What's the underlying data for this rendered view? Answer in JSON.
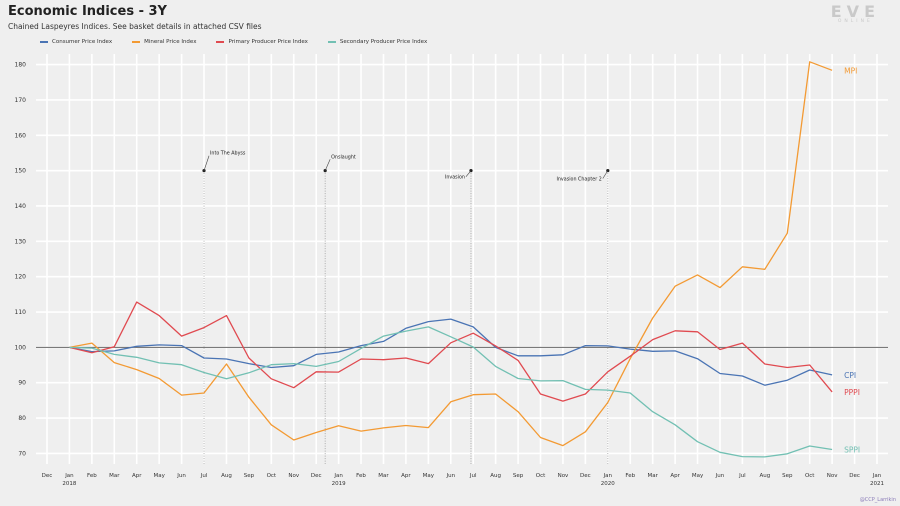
{
  "header": {
    "title": "Economic Indices - 3Y",
    "subtitle": "Chained Laspeyres Indices. See basket details in attached CSV files"
  },
  "logo": {
    "main": "EVE",
    "sub": "ONLINE"
  },
  "credit": "@CCP_Larrikin",
  "colors": {
    "background": "#efefef",
    "grid": "#ffffff",
    "axis": "#555555",
    "cpi": "#4a74b4",
    "mpi": "#f39a33",
    "pppi": "#e04a50",
    "sppi": "#72c0b3"
  },
  "chart_data": {
    "type": "line",
    "title": "Economic Indices - 3Y",
    "grid": true,
    "legend": "top-left",
    "ylim": [
      67,
      183
    ],
    "y_ticks": [
      70,
      80,
      90,
      100,
      110,
      120,
      130,
      140,
      150,
      160,
      170,
      180
    ],
    "reference_line": 100,
    "x_labels": [
      {
        "month": "Dec",
        "year": ""
      },
      {
        "month": "Jan",
        "year": "2018"
      },
      {
        "month": "Feb",
        "year": ""
      },
      {
        "month": "Mar",
        "year": ""
      },
      {
        "month": "Apr",
        "year": ""
      },
      {
        "month": "May",
        "year": ""
      },
      {
        "month": "Jun",
        "year": ""
      },
      {
        "month": "Jul",
        "year": ""
      },
      {
        "month": "Aug",
        "year": ""
      },
      {
        "month": "Sep",
        "year": ""
      },
      {
        "month": "Oct",
        "year": ""
      },
      {
        "month": "Nov",
        "year": ""
      },
      {
        "month": "Dec",
        "year": ""
      },
      {
        "month": "Jan",
        "year": "2019"
      },
      {
        "month": "Feb",
        "year": ""
      },
      {
        "month": "Mar",
        "year": ""
      },
      {
        "month": "Apr",
        "year": ""
      },
      {
        "month": "May",
        "year": ""
      },
      {
        "month": "Jun",
        "year": ""
      },
      {
        "month": "Jul",
        "year": ""
      },
      {
        "month": "Aug",
        "year": ""
      },
      {
        "month": "Sep",
        "year": ""
      },
      {
        "month": "Oct",
        "year": ""
      },
      {
        "month": "Nov",
        "year": ""
      },
      {
        "month": "Dec",
        "year": ""
      },
      {
        "month": "Jan",
        "year": "2020"
      },
      {
        "month": "Feb",
        "year": ""
      },
      {
        "month": "Mar",
        "year": ""
      },
      {
        "month": "Apr",
        "year": ""
      },
      {
        "month": "May",
        "year": ""
      },
      {
        "month": "Jun",
        "year": ""
      },
      {
        "month": "Jul",
        "year": ""
      },
      {
        "month": "Aug",
        "year": ""
      },
      {
        "month": "Sep",
        "year": ""
      },
      {
        "month": "Oct",
        "year": ""
      },
      {
        "month": "Nov",
        "year": ""
      },
      {
        "month": "Dec",
        "year": ""
      },
      {
        "month": "Jan",
        "year": "2021"
      }
    ],
    "series": [
      {
        "name": "Consumer Price Index",
        "end_label": "CPI",
        "color": "#4a74b4",
        "values": [
          100,
          98.8,
          99,
          100.3,
          100.7,
          100.5,
          97,
          96.7,
          95.4,
          94.3,
          94.8,
          98,
          98.7,
          100.5,
          101.7,
          105.4,
          107.3,
          108,
          105.8,
          100,
          97.6,
          97.6,
          97.9,
          100.5,
          100.4,
          99.5,
          98.9,
          99,
          96.8,
          92.6,
          91.9,
          89.3,
          90.7,
          93.6,
          92.2
        ]
      },
      {
        "name": "Mineral Price Index",
        "end_label": "MPI",
        "color": "#f39a33",
        "values": [
          100,
          101.2,
          95.7,
          93.7,
          91.2,
          86.5,
          87.1,
          95.3,
          85.9,
          78.1,
          73.8,
          75.9,
          77.8,
          76.3,
          77.2,
          77.9,
          77.3,
          84.6,
          86.6,
          86.8,
          81.8,
          74.5,
          72.2,
          76.1,
          84.4,
          96.8,
          108.3,
          117.3,
          120.5,
          116.9,
          122.8,
          122.1,
          132.3,
          180.8,
          178.4
        ]
      },
      {
        "name": "Primary Producer Price Index",
        "end_label": "PPPI",
        "color": "#e04a50",
        "values": [
          100,
          98.5,
          100.2,
          112.8,
          109,
          103.2,
          105.6,
          109,
          97,
          91.1,
          88.6,
          93.1,
          93,
          96.7,
          96.5,
          97,
          95.4,
          101.3,
          104,
          100.4,
          96.3,
          86.8,
          84.8,
          86.8,
          93.1,
          97.5,
          102.2,
          104.7,
          104.4,
          99.4,
          101.2,
          95.3,
          94.3,
          95,
          87.4
        ]
      },
      {
        "name": "Secondary Producer Price Index",
        "end_label": "SPPI",
        "color": "#72c0b3",
        "values": [
          100,
          99.8,
          98,
          97.2,
          95.6,
          95.1,
          92.9,
          91.1,
          92.8,
          95.1,
          95.4,
          94.6,
          96,
          99.7,
          103.2,
          104.6,
          105.8,
          103,
          100.1,
          94.6,
          91.2,
          90.5,
          90.6,
          88.1,
          87.9,
          87.1,
          81.8,
          78.1,
          73.3,
          70.3,
          69.1,
          69,
          69.9,
          72.1,
          71.1
        ]
      }
    ],
    "annotations": [
      {
        "label": "Into The Abyss",
        "date_index": 6,
        "y": 150,
        "text_side": "right",
        "text_y": 154.5
      },
      {
        "label": "Onslaught",
        "date_index": 11.4,
        "y": 150,
        "text_side": "right",
        "text_y": 153.5
      },
      {
        "label": "Invasion",
        "date_index": 17.9,
        "y": 150,
        "text_side": "left",
        "text_y": 148
      },
      {
        "label": "Invasion Chapter 2",
        "date_index": 24,
        "y": 150,
        "text_side": "left",
        "text_y": 147.5
      }
    ]
  }
}
